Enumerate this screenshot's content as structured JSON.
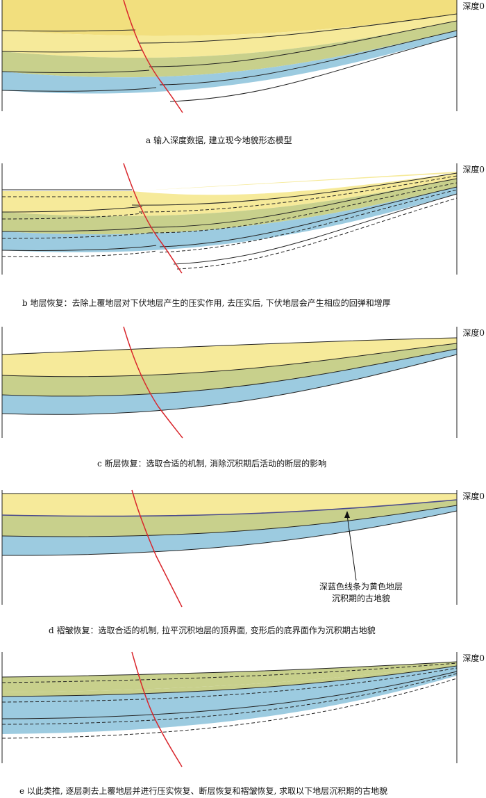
{
  "colors": {
    "yellow": "#f6ea9a",
    "yellow_dark": "#f2df7e",
    "green": "#c8d08c",
    "blue": "#9ccbe0",
    "fault": "#d9262c",
    "paleo": "#4a4a8c"
  },
  "depth_label": "深度0",
  "panels": [
    {
      "id": "a",
      "caption": "a 输入深度数据, 建立现今地貌形态模型"
    },
    {
      "id": "b",
      "caption": "b 地层恢复：去除上覆地层对下伏地层产生的压实作用, 去压实后, 下伏地层会产生相应的回弹和增厚"
    },
    {
      "id": "c",
      "caption": "c 断层恢复：选取合适的机制, 消除沉积期后活动的断层的影响"
    },
    {
      "id": "d",
      "caption": "d 褶皱恢复：选取合适的机制, 拉平沉积地层的顶界面, 变形后的底界面作为沉积期古地貌"
    },
    {
      "id": "e",
      "caption": "e 以此类推, 逐层剥去上覆地层并进行压实恢复、断层恢复和褶皱恢复, 求取以下地层沉积期的古地貌"
    }
  ],
  "annotation": {
    "line1": "深蓝色线条为黄色地层",
    "line2": "沉积期的古地貌"
  }
}
